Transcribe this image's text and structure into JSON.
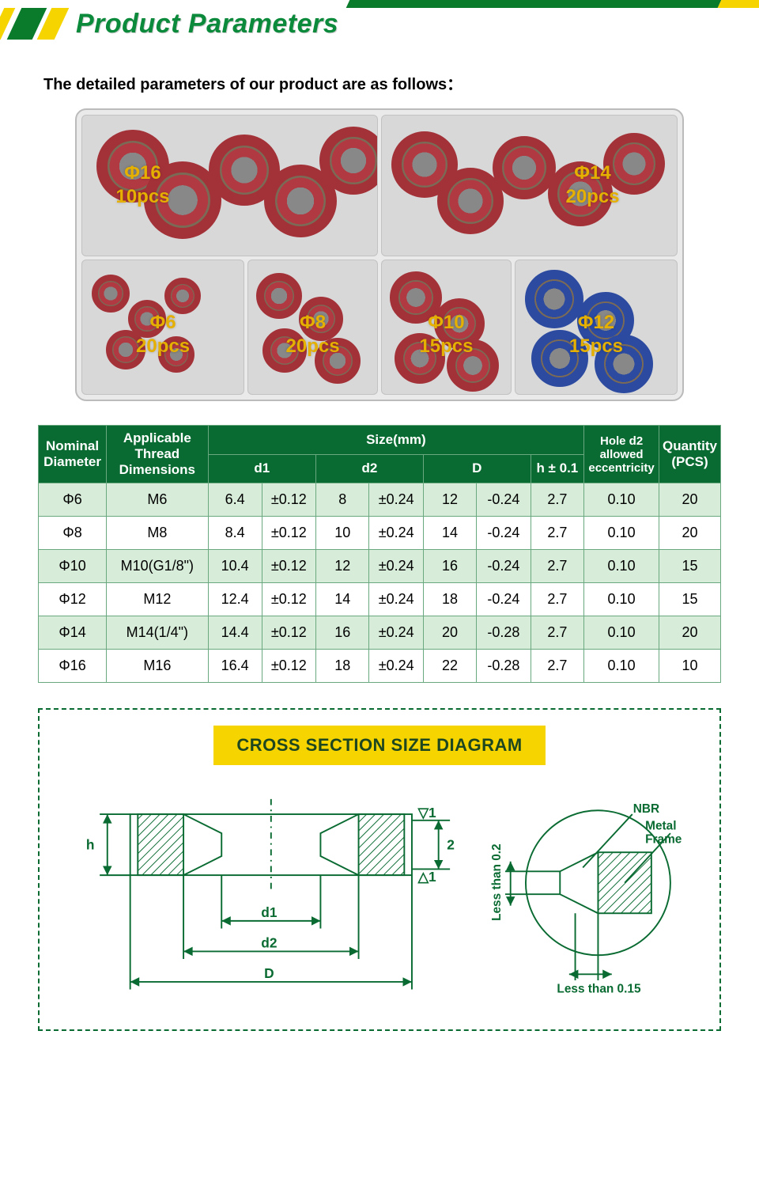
{
  "header": {
    "title": "Product Parameters"
  },
  "intro": "The detailed parameters of our product are as follows：",
  "box": {
    "top": [
      {
        "phi": "Φ16",
        "qty": "10pcs",
        "color": "red"
      },
      {
        "phi": "Φ14",
        "qty": "20pcs",
        "color": "red"
      }
    ],
    "bottom": [
      {
        "phi": "Φ6",
        "qty": "20pcs",
        "color": "red"
      },
      {
        "phi": "Φ8",
        "qty": "20pcs",
        "color": "red"
      },
      {
        "phi": "Φ10",
        "qty": "15pcs",
        "color": "red"
      },
      {
        "phi": "Φ12",
        "qty": "15pcs",
        "color": "blue"
      }
    ],
    "label_color": "#e6b000",
    "label_fontsize": 24
  },
  "spec": {
    "columns_top": [
      "Nominal Diameter",
      "Applicable Thread Dimensions",
      "Size(mm)",
      "Hole d2 allowed eccentricity",
      "Quantity (PCS)"
    ],
    "size_subcols": [
      "d1",
      "d2",
      "D",
      "h ± 0.1"
    ],
    "col_widths": [
      "10%",
      "15%",
      "8%",
      "8%",
      "8%",
      "8%",
      "8%",
      "8%",
      "8%",
      "11%",
      "8%"
    ],
    "header_bg": "#0a6b32",
    "header_fg": "#ffffff",
    "row_odd_bg": "#d7ecd9",
    "row_even_bg": "#ffffff",
    "border_color": "#6aa97f",
    "fontsize": 18,
    "rows": [
      [
        "Φ6",
        "M6",
        "6.4",
        "±0.12",
        "8",
        "±0.24",
        "12",
        "-0.24",
        "2.7",
        "0.10",
        "20"
      ],
      [
        "Φ8",
        "M8",
        "8.4",
        "±0.12",
        "10",
        "±0.24",
        "14",
        "-0.24",
        "2.7",
        "0.10",
        "20"
      ],
      [
        "Φ10",
        "M10(G1/8\")",
        "10.4",
        "±0.12",
        "12",
        "±0.24",
        "16",
        "-0.24",
        "2.7",
        "0.10",
        "15"
      ],
      [
        "Φ12",
        "M12",
        "12.4",
        "±0.12",
        "14",
        "±0.24",
        "18",
        "-0.24",
        "2.7",
        "0.10",
        "15"
      ],
      [
        "Φ14",
        "M14(1/4\")",
        "14.4",
        "±0.12",
        "16",
        "±0.24",
        "20",
        "-0.28",
        "2.7",
        "0.10",
        "20"
      ],
      [
        "Φ16",
        "M16",
        "16.4",
        "±0.12",
        "18",
        "±0.24",
        "22",
        "-0.28",
        "2.7",
        "0.10",
        "10"
      ]
    ]
  },
  "diagram": {
    "title": "CROSS SECTION SIZE DIAGRAM",
    "title_bg": "#f5d400",
    "title_fg": "#1e4720",
    "border_color": "#0a6b32",
    "labels": {
      "h": "h",
      "d1": "d1",
      "d2": "d2",
      "D": "D",
      "n2": "2",
      "tri_up": "▽1",
      "tri_dn": "△1",
      "nbr": "NBR",
      "metal": "Metal Frame",
      "lt02": "Less than 0.2",
      "lt015": "Less than 0.15"
    },
    "line_color": "#0a6b32",
    "line_width": 2,
    "hatch_color": "#0a6b32",
    "text_color": "#0a6b32",
    "text_fontsize": 18
  }
}
